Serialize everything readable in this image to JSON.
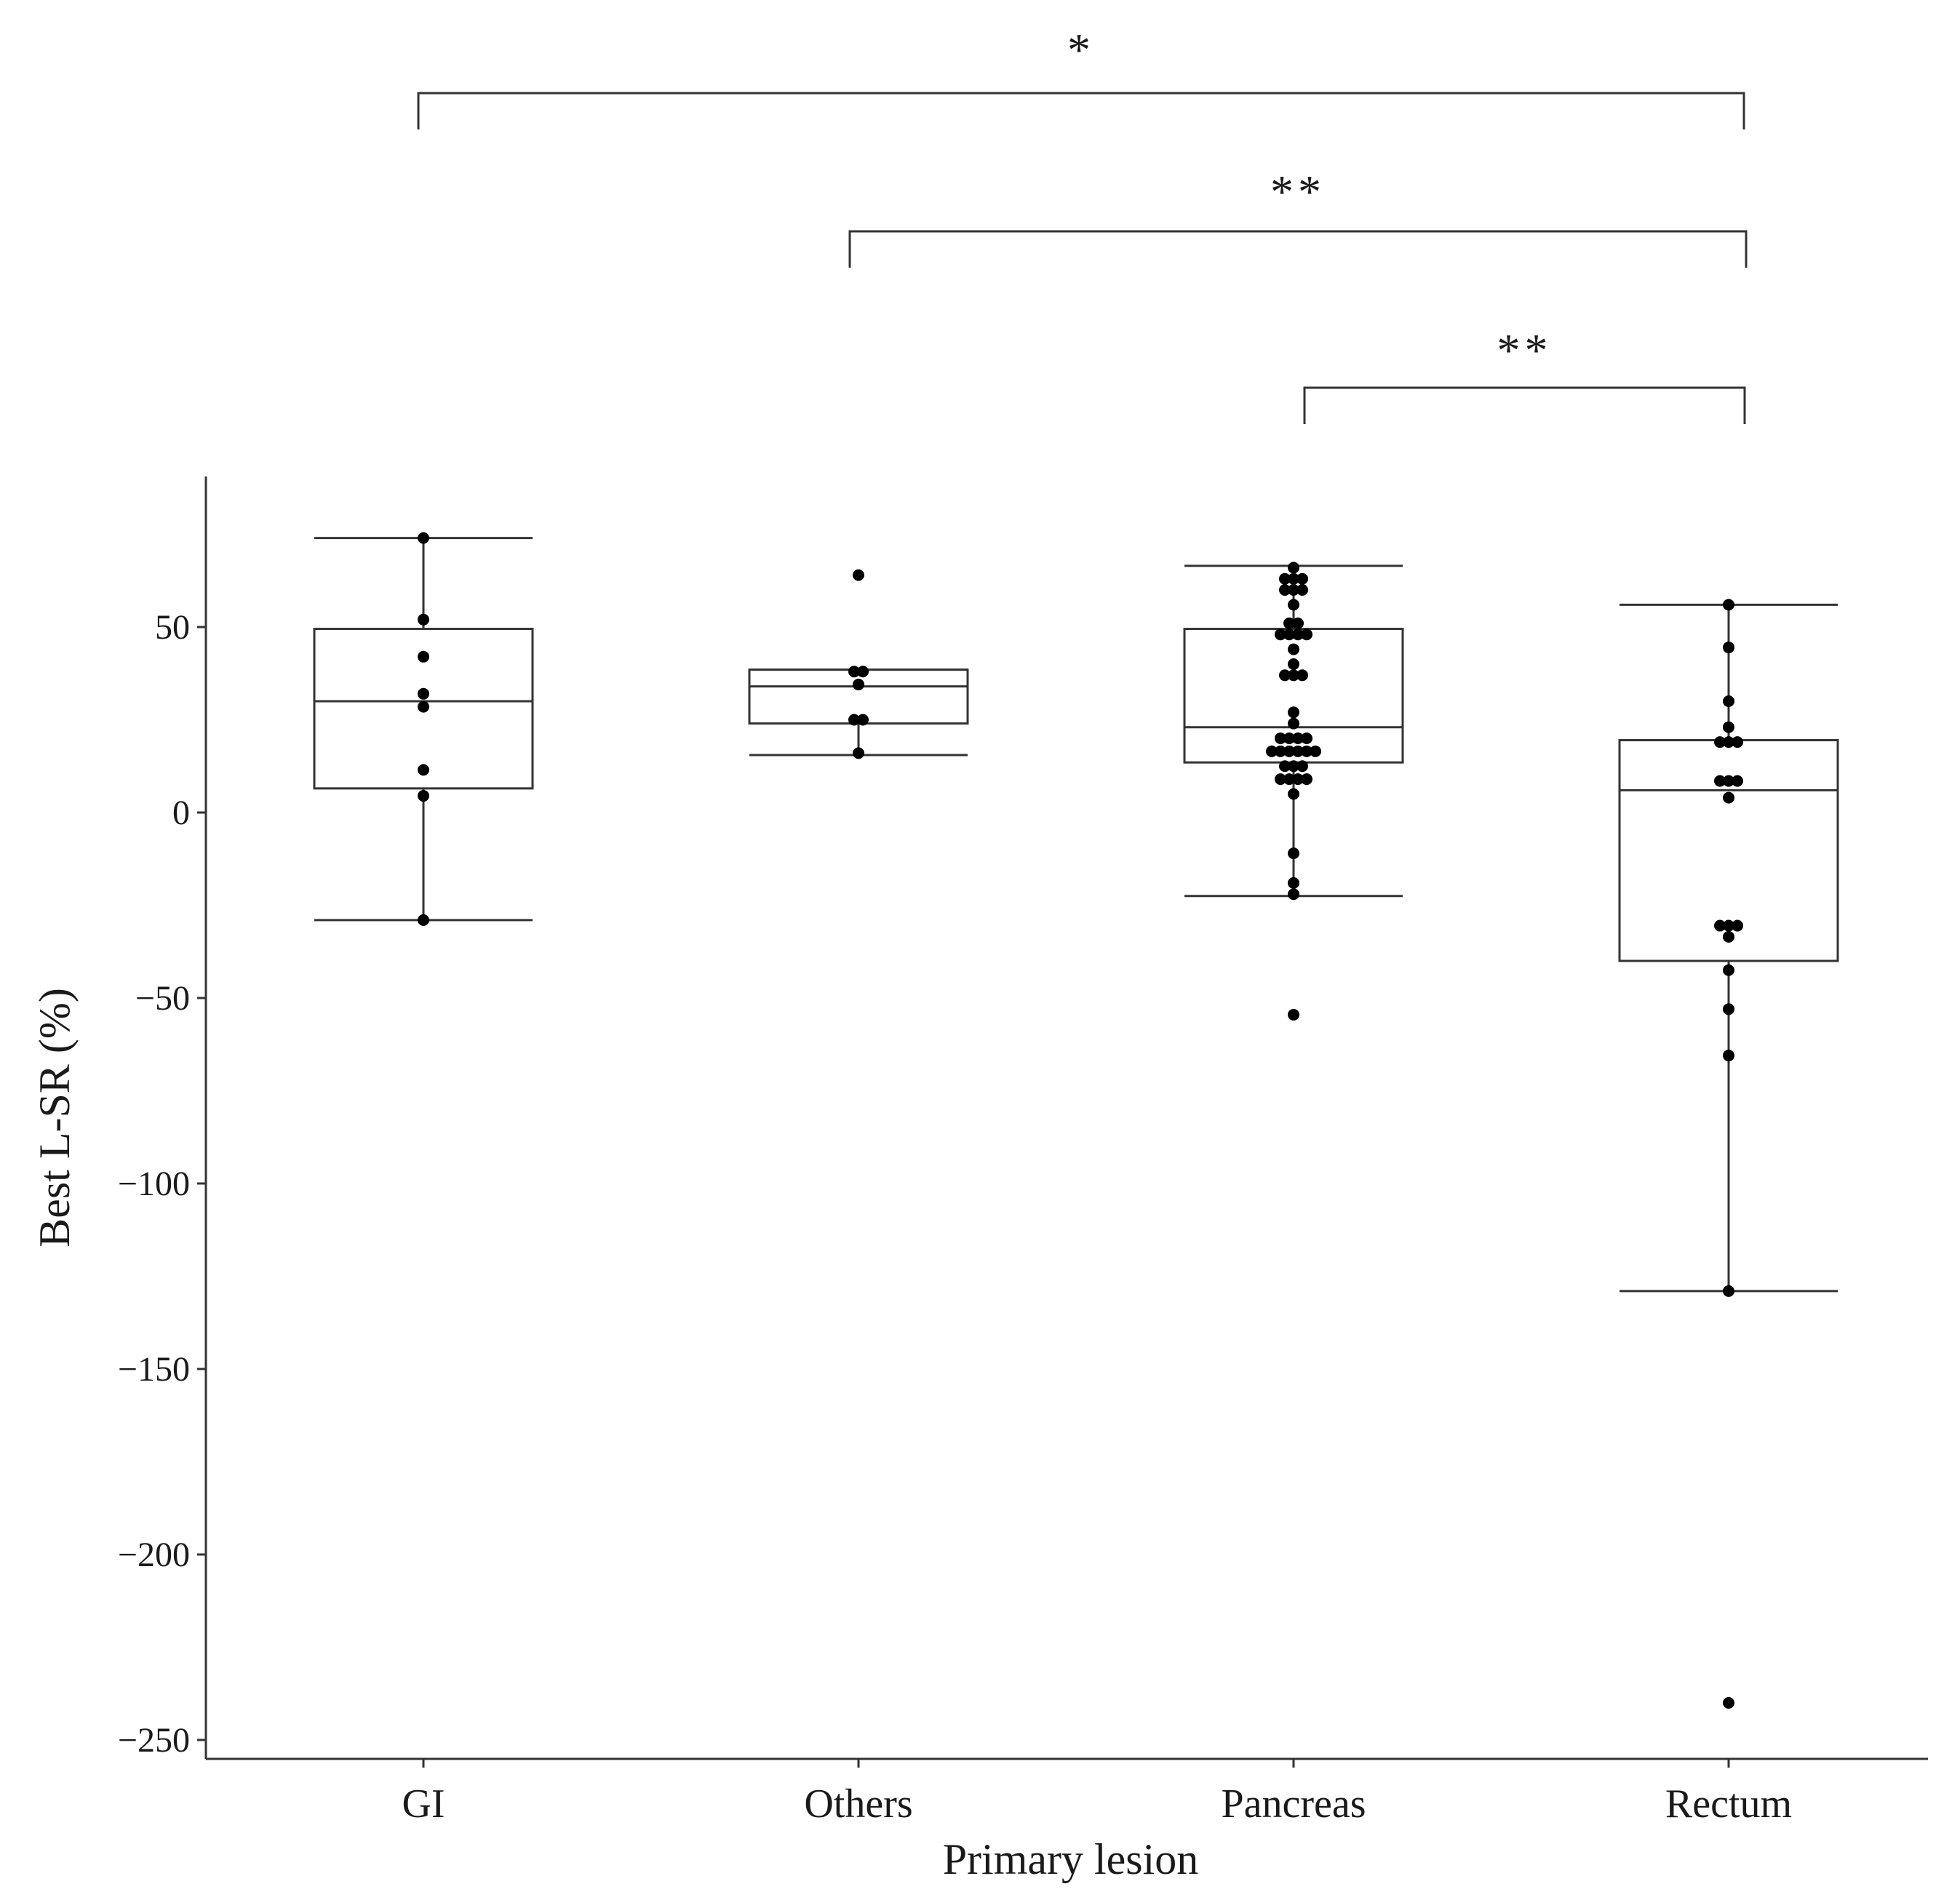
{
  "chart_data": {
    "type": "box",
    "xlabel": "Primary lesion",
    "ylabel": "Best L-SR (%)",
    "ylim": [
      -255,
      90
    ],
    "yticks": [
      50,
      0,
      -50,
      -100,
      -150,
      -200,
      -250
    ],
    "ytick_labels": [
      "50",
      "0",
      "−50",
      "−100",
      "−150",
      "−200",
      "−250"
    ],
    "grid": false,
    "categories": [
      "GI",
      "Others",
      "Pancreas",
      "Rectum"
    ],
    "boxes": [
      {
        "category": "GI",
        "whisker_low": -29,
        "q1": 6.5,
        "median": 30,
        "q3": 49.5,
        "whisker_high": 74,
        "points": [
          74,
          52,
          42,
          32,
          28.5,
          11.5,
          4.5,
          -29
        ]
      },
      {
        "category": "Others",
        "whisker_low": 15.5,
        "q1": 24,
        "median": 34,
        "q3": 38.5,
        "whisker_high": 38.5,
        "points": [
          64,
          38,
          38,
          34.5,
          25,
          25,
          16
        ]
      },
      {
        "category": "Pancreas",
        "whisker_low": -22.5,
        "q1": 13.5,
        "median": 23,
        "q3": 49.5,
        "whisker_high": 66.5,
        "points": [
          66,
          63,
          63,
          63,
          60,
          60,
          60,
          56,
          51,
          51,
          48,
          48,
          48,
          48,
          44,
          40,
          37,
          37,
          37,
          27,
          24,
          20,
          20,
          20,
          20,
          16.5,
          16.5,
          16.5,
          16.5,
          16.5,
          16.5,
          12.5,
          12.5,
          12.5,
          9,
          9,
          9,
          9,
          5,
          -11,
          -19,
          -22,
          -54.5
        ]
      },
      {
        "category": "Rectum",
        "whisker_low": -129,
        "q1": -40,
        "median": 6,
        "q3": 19.5,
        "whisker_high": 56,
        "points": [
          56,
          44.5,
          30,
          23,
          19,
          19,
          19,
          8.5,
          8.5,
          8.5,
          4,
          -30.5,
          -30.5,
          -30.5,
          -33.5,
          -42.5,
          -53,
          -65.5,
          -129,
          -240
        ]
      }
    ],
    "significance": [
      {
        "from": "GI",
        "to": "Rectum",
        "label": "*"
      },
      {
        "from": "Others",
        "to": "Rectum",
        "label": "**"
      },
      {
        "from": "Pancreas",
        "to": "Rectum",
        "label": "**"
      }
    ]
  }
}
